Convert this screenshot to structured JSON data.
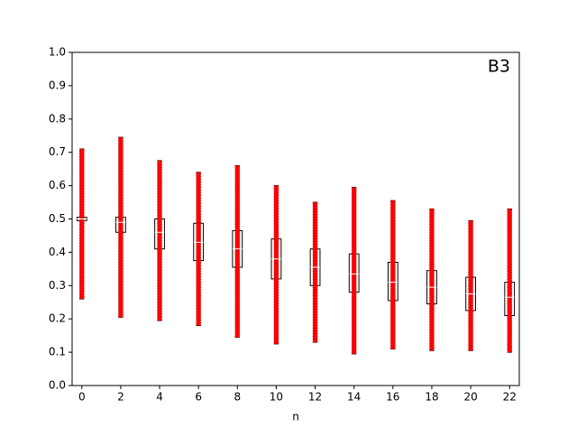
{
  "chart_data": {
    "type": "box",
    "annotation": "B3",
    "x_label": "n",
    "x": [
      0,
      2,
      4,
      6,
      8,
      10,
      12,
      14,
      16,
      18,
      20,
      22
    ],
    "low": [
      0.26,
      0.205,
      0.195,
      0.18,
      0.145,
      0.125,
      0.13,
      0.095,
      0.11,
      0.105,
      0.105,
      0.1
    ],
    "q1": [
      0.495,
      0.46,
      0.41,
      0.375,
      0.355,
      0.32,
      0.3,
      0.28,
      0.255,
      0.245,
      0.225,
      0.21
    ],
    "median": [
      0.5,
      0.49,
      0.46,
      0.43,
      0.41,
      0.38,
      0.355,
      0.335,
      0.31,
      0.295,
      0.275,
      0.265
    ],
    "q3": [
      0.505,
      0.505,
      0.5,
      0.487,
      0.465,
      0.44,
      0.41,
      0.395,
      0.37,
      0.345,
      0.325,
      0.31
    ],
    "high": [
      0.71,
      0.745,
      0.675,
      0.64,
      0.66,
      0.6,
      0.55,
      0.595,
      0.555,
      0.53,
      0.495,
      0.53
    ],
    "point_color": "#ff0000",
    "xlim": [
      -0.5,
      22.5
    ],
    "xticks": [
      0,
      2,
      4,
      6,
      8,
      10,
      12,
      14,
      16,
      18,
      20,
      22
    ],
    "ylim": [
      0,
      1
    ],
    "yticks": [
      {
        "value": 0,
        "label": "0.0"
      },
      0.1,
      0.2,
      0.3,
      0.4,
      0.5,
      0.6,
      0.7,
      0.8,
      0.9,
      {
        "value": 1,
        "label": "1.0"
      }
    ]
  }
}
